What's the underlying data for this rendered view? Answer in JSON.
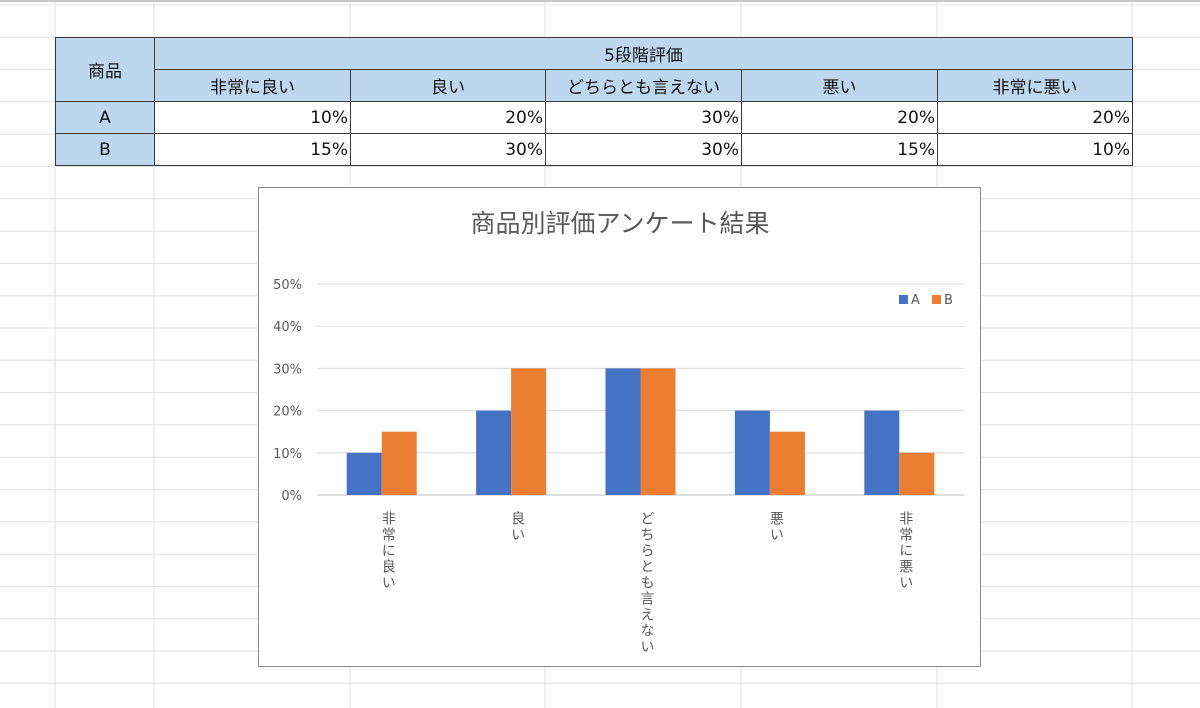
{
  "table": {
    "corner_label": "商品",
    "group_label": "5段階評価",
    "columns": [
      "非常に良い",
      "良い",
      "どちらとも言えない",
      "悪い",
      "非常に悪い"
    ],
    "rows": [
      {
        "label": "A",
        "cells": [
          "10%",
          "20%",
          "30%",
          "20%",
          "20%"
        ]
      },
      {
        "label": "B",
        "cells": [
          "15%",
          "30%",
          "30%",
          "15%",
          "10%"
        ]
      }
    ]
  },
  "colors": {
    "header_fill": "#bdd7ee",
    "series_a": "#4472c4",
    "series_b": "#ed7d31",
    "grid_line": "#d9d9d9",
    "sheet_grid": "#e0e0e0"
  },
  "chart_data": {
    "type": "bar",
    "title": "商品別評価アンケート結果",
    "categories": [
      "非常に良い",
      "良い",
      "どちらとも言えない",
      "悪い",
      "非常に悪い"
    ],
    "series": [
      {
        "name": "A",
        "values": [
          10,
          20,
          30,
          20,
          20
        ]
      },
      {
        "name": "B",
        "values": [
          15,
          30,
          30,
          15,
          10
        ]
      }
    ],
    "ylim": [
      0,
      50
    ],
    "yticks": [
      "0%",
      "10%",
      "20%",
      "30%",
      "40%",
      "50%"
    ],
    "ytick_values": [
      0,
      10,
      20,
      30,
      40,
      50
    ],
    "grid": true,
    "legend_position": "top-right",
    "category_label_orientation": "vertical"
  }
}
